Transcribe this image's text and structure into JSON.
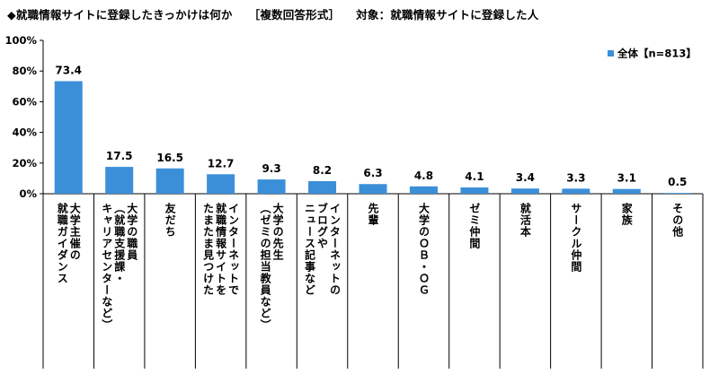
{
  "title": {
    "question": "◆就職情報サイトに登録したきっかけは何か",
    "format": "［複数回答形式］",
    "target": "対象：就職情報サイトに登録した人"
  },
  "chart_data": {
    "type": "bar",
    "ylim": [
      0,
      100
    ],
    "yticks": [
      "0%",
      "20%",
      "40%",
      "60%",
      "80%",
      "100%"
    ],
    "yticks_values": [
      0,
      20,
      40,
      60,
      80,
      100
    ],
    "grid": false,
    "legend_position": "top-right",
    "bar_color": "#3b8fd9",
    "series": [
      {
        "name": "全体【n=813】",
        "values": [
          73.4,
          17.5,
          16.5,
          12.7,
          9.3,
          8.2,
          6.3,
          4.8,
          4.1,
          3.4,
          3.3,
          3.1,
          0.5
        ]
      }
    ],
    "value_labels": [
      "73.4",
      "17.5",
      "16.5",
      "12.7",
      "9.3",
      "8.2",
      "6.3",
      "4.8",
      "4.1",
      "3.4",
      "3.3",
      "3.1",
      "0.5"
    ],
    "categories": [
      "大学主催の\n就職ガイダンス",
      "大学の職員\n（就職支援課・\nキャリアセンターなど）",
      "友だち",
      "インターネットで\n就職情報サイトを\nたまたま見つけた",
      "大学の先生\n（ゼミの担当教員など）",
      "インターネットの\nブログや\nニュース記事など",
      "先輩",
      "大学のＯＢ・ＯＧ",
      "ゼミ仲間",
      "就活本",
      "サークル仲間",
      "家族",
      "その他"
    ]
  }
}
